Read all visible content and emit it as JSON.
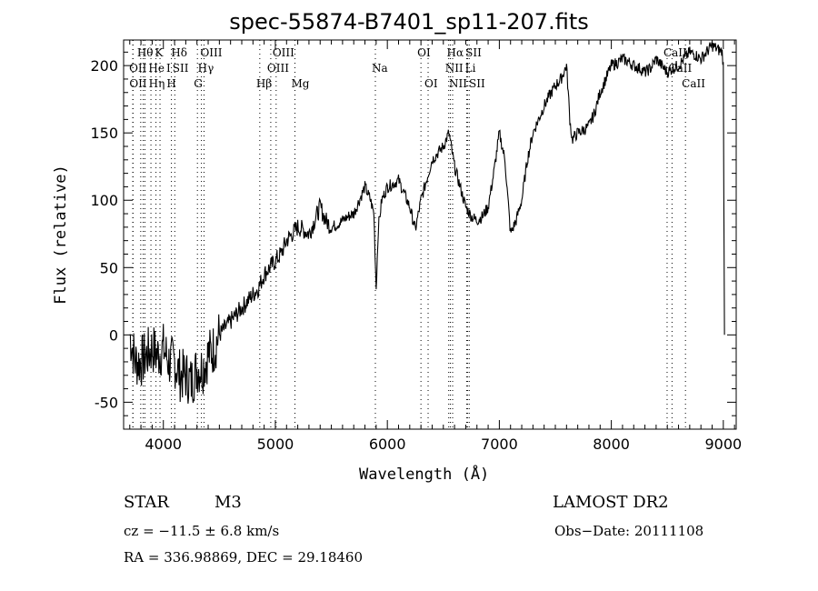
{
  "chart_data": {
    "type": "line",
    "title": "spec-55874-B7401_sp11-207.fits",
    "xlabel": "Wavelength (Å)",
    "ylabel": "Flux (relative)",
    "xlim": [
      3645,
      9115
    ],
    "ylim": [
      -70,
      219
    ],
    "xticks": [
      4000,
      5000,
      6000,
      7000,
      8000,
      9000
    ],
    "yticks": [
      -50,
      0,
      50,
      100,
      150,
      200
    ],
    "grid": false,
    "series": [
      {
        "name": "spectrum",
        "x": [
          3700,
          3750,
          3800,
          3850,
          3900,
          3950,
          4000,
          4050,
          4100,
          4150,
          4200,
          4250,
          4300,
          4350,
          4400,
          4450,
          4500,
          4550,
          4600,
          4650,
          4700,
          4750,
          4800,
          4850,
          4900,
          4950,
          5000,
          5050,
          5100,
          5150,
          5200,
          5250,
          5300,
          5350,
          5400,
          5450,
          5500,
          5550,
          5600,
          5650,
          5700,
          5750,
          5800,
          5850,
          5880,
          5900,
          5920,
          5950,
          6000,
          6050,
          6100,
          6150,
          6200,
          6250,
          6300,
          6350,
          6400,
          6450,
          6500,
          6550,
          6600,
          6650,
          6700,
          6750,
          6800,
          6850,
          6900,
          6950,
          7000,
          7050,
          7100,
          7150,
          7200,
          7250,
          7300,
          7350,
          7400,
          7450,
          7500,
          7550,
          7600,
          7630,
          7650,
          7700,
          7750,
          7800,
          7850,
          7900,
          7950,
          8000,
          8050,
          8100,
          8150,
          8200,
          8250,
          8300,
          8350,
          8400,
          8450,
          8500,
          8550,
          8600,
          8650,
          8700,
          8750,
          8800,
          8850,
          8900,
          8950,
          8990,
          9000,
          9010
        ],
        "y": [
          0,
          -20,
          -20,
          -15,
          -10,
          -15,
          -10,
          -20,
          -20,
          -30,
          -30,
          -35,
          -25,
          -25,
          -15,
          -10,
          0,
          5,
          10,
          15,
          20,
          25,
          30,
          35,
          45,
          50,
          55,
          60,
          70,
          75,
          80,
          78,
          75,
          85,
          95,
          85,
          80,
          82,
          85,
          88,
          90,
          100,
          110,
          100,
          90,
          35,
          80,
          100,
          110,
          112,
          115,
          105,
          95,
          78,
          100,
          115,
          130,
          135,
          140,
          150,
          125,
          110,
          95,
          88,
          85,
          88,
          95,
          120,
          150,
          130,
          75,
          85,
          100,
          130,
          150,
          160,
          170,
          178,
          185,
          190,
          200,
          160,
          145,
          150,
          152,
          155,
          165,
          180,
          190,
          200,
          202,
          205,
          203,
          200,
          198,
          195,
          198,
          205,
          200,
          195,
          198,
          200,
          205,
          210,
          208,
          205,
          210,
          215,
          212,
          210,
          200,
          0
        ]
      }
    ],
    "line_labels": {
      "row1": [
        {
          "text": "Hθ",
          "wl": 3798
        },
        {
          "text": "K",
          "wl": 3934
        },
        {
          "text": "Hδ",
          "wl": 4102
        },
        {
          "text": "OIII",
          "wl": 4363
        },
        {
          "text": "OIII",
          "wl": 5007
        },
        {
          "text": "OI",
          "wl": 6300
        },
        {
          "text": "Hα",
          "wl": 6563
        },
        {
          "text": "SII",
          "wl": 6716
        },
        {
          "text": "CaII",
          "wl": 8498
        }
      ],
      "row2": [
        {
          "text": "OII",
          "wl": 3727
        },
        {
          "text": "He",
          "wl": 3820
        },
        {
          "text": "I",
          "wl": 3889
        },
        {
          "text": "SII",
          "wl": 4072
        },
        {
          "text": "Hγ",
          "wl": 4340
        },
        {
          "text": "OIII",
          "wl": 4959
        },
        {
          "text": "Na",
          "wl": 5893
        },
        {
          "text": "NII",
          "wl": 6548
        },
        {
          "text": "Li",
          "wl": 6708
        },
        {
          "text": "CaII",
          "wl": 8542
        }
      ],
      "row3": [
        {
          "text": "OII",
          "wl": 3729
        },
        {
          "text": "Hη",
          "wl": 3835
        },
        {
          "text": "H",
          "wl": 3970
        },
        {
          "text": "G",
          "wl": 4304
        },
        {
          "text": "Hβ",
          "wl": 4861
        },
        {
          "text": "Mg",
          "wl": 5175
        },
        {
          "text": "OI",
          "wl": 6364
        },
        {
          "text": "NII",
          "wl": 6583
        },
        {
          "text": "SII",
          "wl": 6731
        },
        {
          "text": "CaII",
          "wl": 8662
        }
      ]
    }
  },
  "info": {
    "class": "STAR",
    "subclass": "M3",
    "survey": "LAMOST DR2",
    "cz": "cz = −11.5 ± 6.8 km/s",
    "obs_date": "Obs−Date: 20111108",
    "coords": "RA = 336.98869, DEC =  29.18460"
  }
}
